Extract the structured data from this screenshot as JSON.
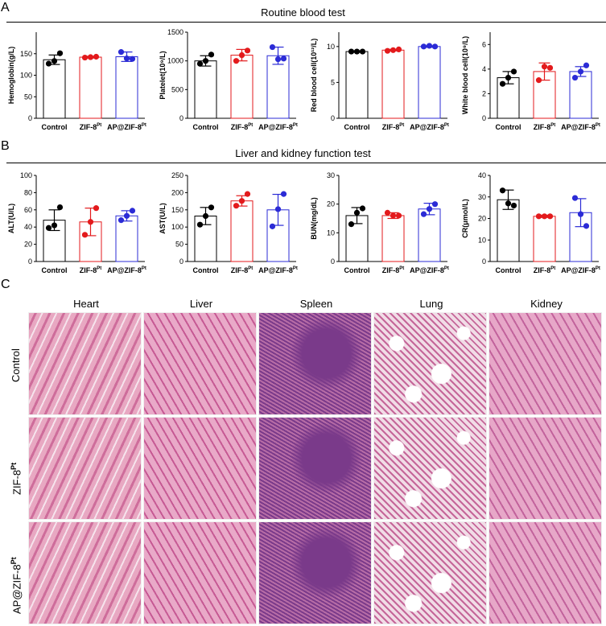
{
  "panels": {
    "a": "A",
    "b": "B",
    "c": "C"
  },
  "section_titles": {
    "routine": "Routine blood test",
    "liver_kidney": "Liver and kidney function test"
  },
  "groups": [
    "Control",
    "ZIF-8",
    "AP@ZIF-8"
  ],
  "group_superscript": "Pt",
  "colors": {
    "control": "#000000",
    "zif8": "#e31a1c",
    "apzif8": "#2b2bd6"
  },
  "chart_data": [
    {
      "type": "bar",
      "id": "hemoglobin",
      "ylabel": "Hemoglobin(g/L)",
      "ylim": [
        0,
        200
      ],
      "yticks": [
        0,
        50,
        100,
        150
      ],
      "series": [
        {
          "mean": 136,
          "sd": 11,
          "points": [
            127,
            151,
            133
          ]
        },
        {
          "mean": 142,
          "sd": 2,
          "points": [
            141,
            143,
            142
          ]
        },
        {
          "mean": 143,
          "sd": 11,
          "points": [
            154,
            138,
            139
          ]
        }
      ]
    },
    {
      "type": "bar",
      "id": "platelet",
      "ylabel": "Platelet(10⁹/L)",
      "ylim": [
        0,
        1500
      ],
      "yticks": [
        0,
        500,
        1000,
        1500
      ],
      "series": [
        {
          "mean": 1000,
          "sd": 90,
          "points": [
            950,
            1110,
            1000
          ]
        },
        {
          "mean": 1100,
          "sd": 100,
          "points": [
            1000,
            1180,
            1100
          ]
        },
        {
          "mean": 1090,
          "sd": 150,
          "points": [
            1240,
            1040,
            1030
          ]
        }
      ]
    },
    {
      "type": "bar",
      "id": "rbc",
      "ylabel": "Red blood cell(10¹²/L)",
      "ylim": [
        0,
        12
      ],
      "yticks": [
        0,
        5,
        10
      ],
      "series": [
        {
          "mean": 9.3,
          "sd": 0.1,
          "points": [
            9.3,
            9.3,
            9.3
          ]
        },
        {
          "mean": 9.5,
          "sd": 0.1,
          "points": [
            9.4,
            9.6,
            9.5
          ]
        },
        {
          "mean": 10.0,
          "sd": 0.1,
          "points": [
            10.0,
            10.0,
            10.1
          ]
        }
      ]
    },
    {
      "type": "bar",
      "id": "wbc",
      "ylabel": "White blood cell(10⁹/L)",
      "ylim": [
        0,
        7
      ],
      "yticks": [
        0,
        2,
        4,
        6
      ],
      "series": [
        {
          "mean": 3.3,
          "sd": 0.5,
          "points": [
            2.8,
            3.8,
            3.3
          ]
        },
        {
          "mean": 3.8,
          "sd": 0.7,
          "points": [
            3.1,
            4.1,
            4.2
          ]
        },
        {
          "mean": 3.8,
          "sd": 0.4,
          "points": [
            3.3,
            4.3,
            3.8
          ]
        }
      ]
    },
    {
      "type": "bar",
      "id": "alt",
      "ylabel": "ALT(U/L)",
      "ylim": [
        0,
        100
      ],
      "yticks": [
        0,
        20,
        40,
        60,
        80,
        100
      ],
      "series": [
        {
          "mean": 48,
          "sd": 12,
          "points": [
            39,
            63,
            42
          ]
        },
        {
          "mean": 46,
          "sd": 16,
          "points": [
            31,
            62,
            46
          ]
        },
        {
          "mean": 53,
          "sd": 6,
          "points": [
            48,
            59,
            53
          ]
        }
      ]
    },
    {
      "type": "bar",
      "id": "ast",
      "ylabel": "AST(U/L)",
      "ylim": [
        0,
        250
      ],
      "yticks": [
        0,
        50,
        100,
        150,
        200,
        250
      ],
      "series": [
        {
          "mean": 132,
          "sd": 25,
          "points": [
            107,
            157,
            132
          ]
        },
        {
          "mean": 176,
          "sd": 15,
          "points": [
            162,
            196,
            176
          ]
        },
        {
          "mean": 150,
          "sd": 45,
          "points": [
            102,
            196,
            152
          ]
        }
      ]
    },
    {
      "type": "bar",
      "id": "bun",
      "ylabel": "BUN(mg/dL)",
      "ylim": [
        0,
        30
      ],
      "yticks": [
        0,
        10,
        20,
        30
      ],
      "series": [
        {
          "mean": 16,
          "sd": 2.8,
          "points": [
            13,
            18.5,
            17
          ]
        },
        {
          "mean": 16,
          "sd": 1,
          "points": [
            17,
            16,
            16
          ]
        },
        {
          "mean": 18.3,
          "sd": 2,
          "points": [
            16.5,
            20,
            18.3
          ]
        }
      ]
    },
    {
      "type": "bar",
      "id": "cr",
      "ylabel": "CR(μmol/L)",
      "ylim": [
        0,
        40
      ],
      "yticks": [
        0,
        10,
        20,
        30,
        40
      ],
      "series": [
        {
          "mean": 28.7,
          "sd": 4.5,
          "points": [
            33,
            26,
            27
          ]
        },
        {
          "mean": 21,
          "sd": 0.5,
          "points": [
            21,
            21,
            21
          ]
        },
        {
          "mean": 22.7,
          "sd": 6.5,
          "points": [
            29.5,
            16.5,
            22
          ]
        }
      ]
    }
  ],
  "histology": {
    "columns": [
      "Heart",
      "Liver",
      "Spleen",
      "Lung",
      "Kidney"
    ],
    "rows": [
      {
        "label": "Control",
        "sup": ""
      },
      {
        "label": "ZIF-8",
        "sup": "Pt"
      },
      {
        "label": "AP@ZIF-8",
        "sup": "Pt"
      }
    ],
    "tile_colors": {
      "Heart": [
        "#e8a8c2",
        "#ce6d9b"
      ],
      "Liver": [
        "#e9a9c8",
        "#c65a94"
      ],
      "Spleen": [
        "#b86da6",
        "#7a3a8a"
      ],
      "Lung": [
        "#f1dce6",
        "#c56699"
      ],
      "Kidney": [
        "#e7a7c8",
        "#c2639c"
      ]
    }
  }
}
